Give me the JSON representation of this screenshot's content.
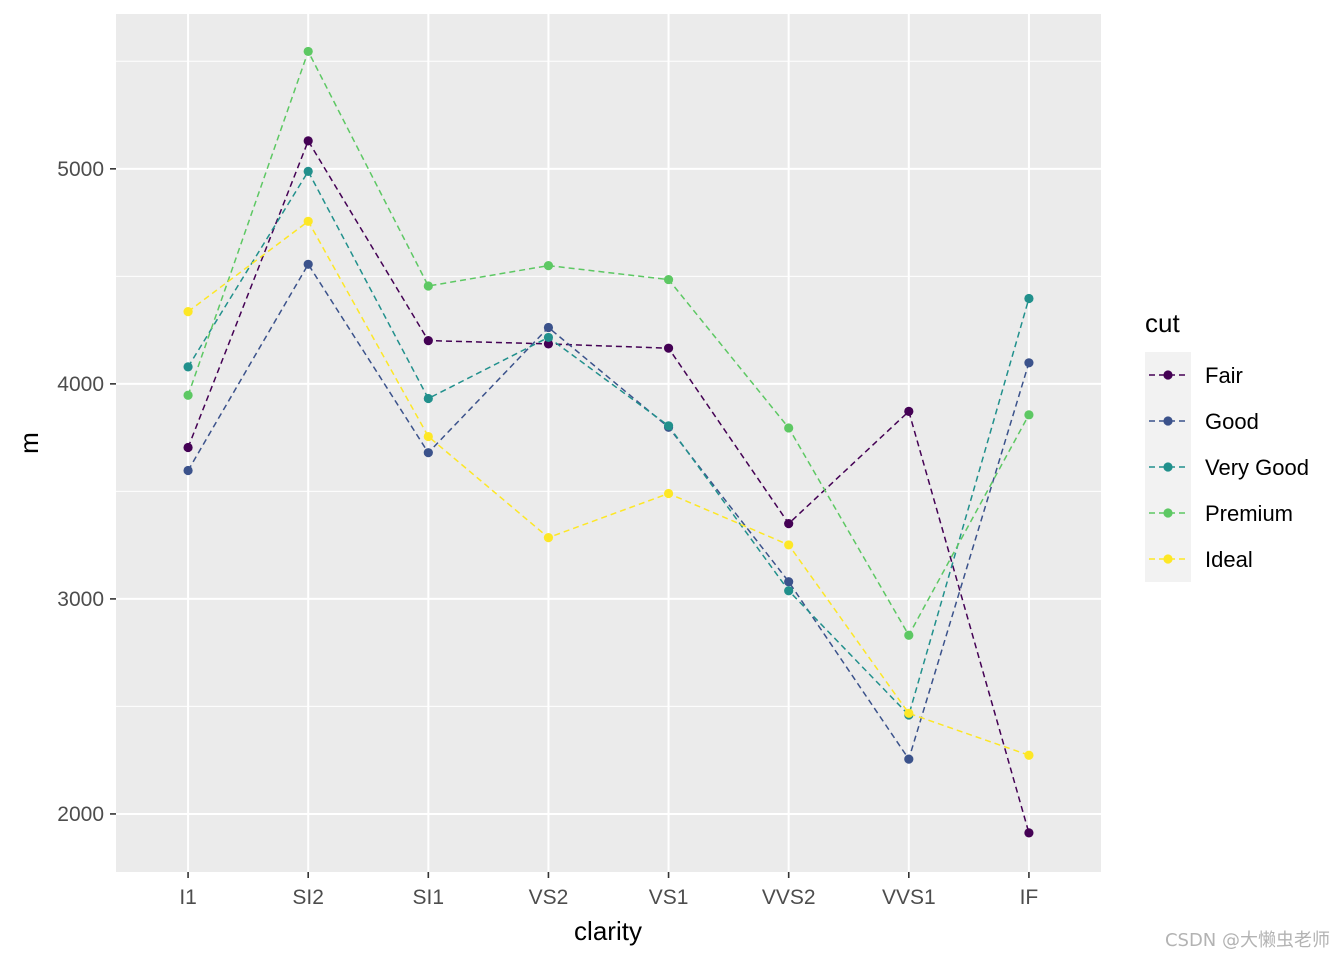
{
  "chart_data": {
    "type": "line",
    "title": "",
    "xlabel": "clarity",
    "ylabel": "m",
    "categories": [
      "I1",
      "SI2",
      "SI1",
      "VS2",
      "VS1",
      "VVS2",
      "VVS1",
      "IF"
    ],
    "yticks": [
      2000,
      3000,
      4000,
      5000
    ],
    "ylim": [
      1730,
      5720
    ],
    "grid": true,
    "legend": {
      "title": "cut",
      "position": "right"
    },
    "line_style": "dashed",
    "series": [
      {
        "name": "Fair",
        "color": "#440154",
        "values": [
          3704,
          5130,
          4201,
          4186,
          4166,
          3350,
          3872,
          1912
        ]
      },
      {
        "name": "Good",
        "color": "#3B528B",
        "values": [
          3597,
          4556,
          3680,
          4262,
          3798,
          3080,
          2255,
          4098
        ]
      },
      {
        "name": "Very Good",
        "color": "#21908C",
        "values": [
          4079,
          4988,
          3932,
          4216,
          3805,
          3038,
          2460,
          4397
        ]
      },
      {
        "name": "Premium",
        "color": "#5DC863",
        "values": [
          3947,
          5546,
          4455,
          4550,
          4485,
          3795,
          2831,
          3856
        ]
      },
      {
        "name": "Ideal",
        "color": "#FDE725",
        "values": [
          4336,
          4756,
          3755,
          3285,
          3490,
          3251,
          2468,
          2273
        ]
      }
    ]
  },
  "watermark": "CSDN @大懒虫老师"
}
